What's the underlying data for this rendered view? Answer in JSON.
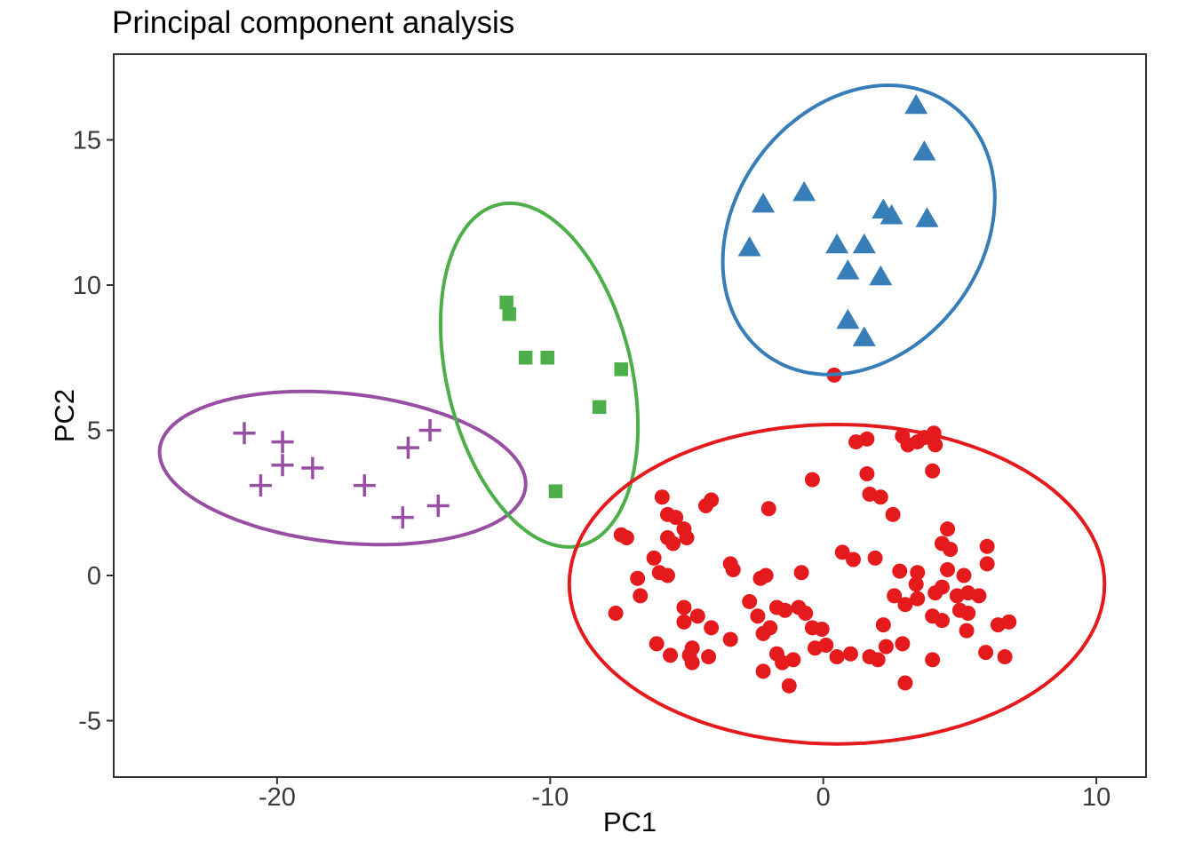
{
  "chart_data": {
    "type": "scatter",
    "title": "Principal component analysis",
    "xlabel": "PC1",
    "ylabel": "PC2",
    "xlim": [
      -26.1,
      11.8
    ],
    "ylim": [
      -6.9,
      17.9
    ],
    "x_ticks": [
      -20,
      -10,
      0,
      10
    ],
    "y_ticks": [
      -5,
      0,
      5,
      10,
      15
    ],
    "grid": false,
    "legend": "none",
    "panel_border_color": "#333333",
    "axis_text_color": "#3a3a3a",
    "series": [
      {
        "name": "cluster-purple",
        "marker": "plus",
        "color": "#984EA3",
        "ellipse": {
          "cx": -17.6,
          "cy": 3.7,
          "a": 6.73,
          "b": 2.57,
          "angle_deg": -5.5
        },
        "points": [
          [
            -21.2,
            4.9
          ],
          [
            -19.8,
            4.6
          ],
          [
            -19.8,
            3.8
          ],
          [
            -18.7,
            3.7
          ],
          [
            -20.6,
            3.1
          ],
          [
            -16.8,
            3.1
          ],
          [
            -15.2,
            4.4
          ],
          [
            -14.4,
            5.0
          ],
          [
            -15.4,
            2.0
          ],
          [
            -14.1,
            2.4
          ]
        ]
      },
      {
        "name": "cluster-green",
        "marker": "square",
        "color": "#4DAF4A",
        "ellipse": {
          "cx": -10.4,
          "cy": 6.9,
          "a": 6.06,
          "b": 3.37,
          "angle_deg": 105
        },
        "points": [
          [
            -11.6,
            9.4
          ],
          [
            -11.5,
            9.0
          ],
          [
            -10.9,
            7.5
          ],
          [
            -10.1,
            7.5
          ],
          [
            -7.4,
            7.1
          ],
          [
            -8.2,
            5.8
          ],
          [
            -9.8,
            2.9
          ]
        ]
      },
      {
        "name": "cluster-blue",
        "marker": "triangle",
        "color": "#377EB8",
        "ellipse": {
          "cx": 1.3,
          "cy": 11.9,
          "a": 5.5,
          "b": 4.4,
          "angle_deg": 45
        },
        "points": [
          [
            3.4,
            16.2
          ],
          [
            3.7,
            14.6
          ],
          [
            -2.2,
            12.8
          ],
          [
            -0.7,
            13.2
          ],
          [
            2.2,
            12.6
          ],
          [
            2.5,
            12.4
          ],
          [
            3.8,
            12.3
          ],
          [
            0.5,
            11.4
          ],
          [
            1.5,
            11.4
          ],
          [
            -2.7,
            11.3
          ],
          [
            0.9,
            10.5
          ],
          [
            2.1,
            10.3
          ],
          [
            0.9,
            8.8
          ],
          [
            1.5,
            8.2
          ]
        ]
      },
      {
        "name": "cluster-red",
        "marker": "circle",
        "color": "#E41A1C",
        "ellipse": {
          "cx": 0.5,
          "cy": -0.3,
          "a": 9.8,
          "b": 5.5,
          "angle_deg": 0
        },
        "points": [
          [
            0.4,
            6.9
          ],
          [
            -5.9,
            2.7
          ],
          [
            -5.7,
            2.1
          ],
          [
            -5.4,
            2.0
          ],
          [
            -4.3,
            2.4
          ],
          [
            -4.1,
            2.6
          ],
          [
            -2.0,
            2.3
          ],
          [
            -0.4,
            3.3
          ],
          [
            -7.4,
            1.4
          ],
          [
            -7.2,
            1.3
          ],
          [
            -5.7,
            1.3
          ],
          [
            -5.5,
            1.1
          ],
          [
            -5.1,
            1.6
          ],
          [
            -5.0,
            1.3
          ],
          [
            -6.2,
            0.6
          ],
          [
            -6.0,
            0.1
          ],
          [
            -5.7,
            0.0
          ],
          [
            -3.4,
            0.4
          ],
          [
            -3.3,
            0.2
          ],
          [
            -2.3,
            -0.1
          ],
          [
            -2.1,
            0.0
          ],
          [
            -0.8,
            0.1
          ],
          [
            -6.8,
            -0.1
          ],
          [
            0.7,
            0.8
          ],
          [
            1.2,
            4.6
          ],
          [
            1.6,
            4.7
          ],
          [
            2.9,
            4.8
          ],
          [
            3.1,
            4.5
          ],
          [
            3.45,
            4.6
          ],
          [
            3.7,
            4.75
          ],
          [
            4.05,
            4.9
          ],
          [
            4.1,
            4.5
          ],
          [
            4.0,
            3.6
          ],
          [
            1.6,
            3.5
          ],
          [
            1.7,
            2.8
          ],
          [
            2.1,
            2.7
          ],
          [
            2.55,
            2.1
          ],
          [
            4.55,
            1.6
          ],
          [
            4.35,
            1.1
          ],
          [
            4.65,
            0.9
          ],
          [
            6.0,
            1.0
          ],
          [
            6.0,
            0.4
          ],
          [
            1.1,
            0.55
          ],
          [
            1.9,
            0.6
          ],
          [
            2.8,
            0.15
          ],
          [
            3.45,
            0.1
          ],
          [
            4.55,
            0.2
          ],
          [
            5.15,
            0.0
          ],
          [
            3.4,
            -0.3
          ],
          [
            -6.7,
            -0.7
          ],
          [
            -7.6,
            -1.3
          ],
          [
            -5.1,
            -1.1
          ],
          [
            -5.1,
            -1.6
          ],
          [
            -4.6,
            -1.4
          ],
          [
            -4.8,
            -2.5
          ],
          [
            -4.1,
            -1.8
          ],
          [
            -6.1,
            -2.35
          ],
          [
            -5.6,
            -2.75
          ],
          [
            -4.9,
            -2.75
          ],
          [
            -4.8,
            -3.0
          ],
          [
            -4.2,
            -2.8
          ],
          [
            -3.4,
            -2.2
          ],
          [
            -2.7,
            -0.9
          ],
          [
            -2.4,
            -1.4
          ],
          [
            -2.2,
            -2.0
          ],
          [
            -1.95,
            -1.8
          ],
          [
            -1.7,
            -1.1
          ],
          [
            -1.4,
            -1.2
          ],
          [
            -2.2,
            -3.3
          ],
          [
            -1.7,
            -2.7
          ],
          [
            -1.5,
            -3.0
          ],
          [
            -1.1,
            -2.9
          ],
          [
            -1.25,
            -3.8
          ],
          [
            -0.9,
            -1.1
          ],
          [
            -0.65,
            -1.3
          ],
          [
            -0.4,
            -1.8
          ],
          [
            -0.05,
            -1.85
          ],
          [
            -0.3,
            -2.5
          ],
          [
            0.1,
            -2.4
          ],
          [
            0.5,
            -2.8
          ],
          [
            2.6,
            -0.7
          ],
          [
            3.0,
            -1.0
          ],
          [
            3.45,
            -0.8
          ],
          [
            4.1,
            -0.6
          ],
          [
            4.35,
            -0.4
          ],
          [
            4.9,
            -0.7
          ],
          [
            5.3,
            -0.6
          ],
          [
            5.7,
            -0.7
          ],
          [
            4.0,
            -1.4
          ],
          [
            4.35,
            -1.55
          ],
          [
            5.0,
            -1.2
          ],
          [
            5.3,
            -1.3
          ],
          [
            2.2,
            -1.7
          ],
          [
            5.25,
            -1.9
          ],
          [
            6.4,
            -1.7
          ],
          [
            6.8,
            -1.6
          ],
          [
            2.9,
            -2.35
          ],
          [
            2.3,
            -2.45
          ],
          [
            1.7,
            -2.8
          ],
          [
            2.0,
            -2.9
          ],
          [
            1.0,
            -2.7
          ],
          [
            4.0,
            -2.9
          ],
          [
            5.95,
            -2.65
          ],
          [
            6.65,
            -2.8
          ],
          [
            3.0,
            -3.7
          ]
        ]
      }
    ]
  }
}
